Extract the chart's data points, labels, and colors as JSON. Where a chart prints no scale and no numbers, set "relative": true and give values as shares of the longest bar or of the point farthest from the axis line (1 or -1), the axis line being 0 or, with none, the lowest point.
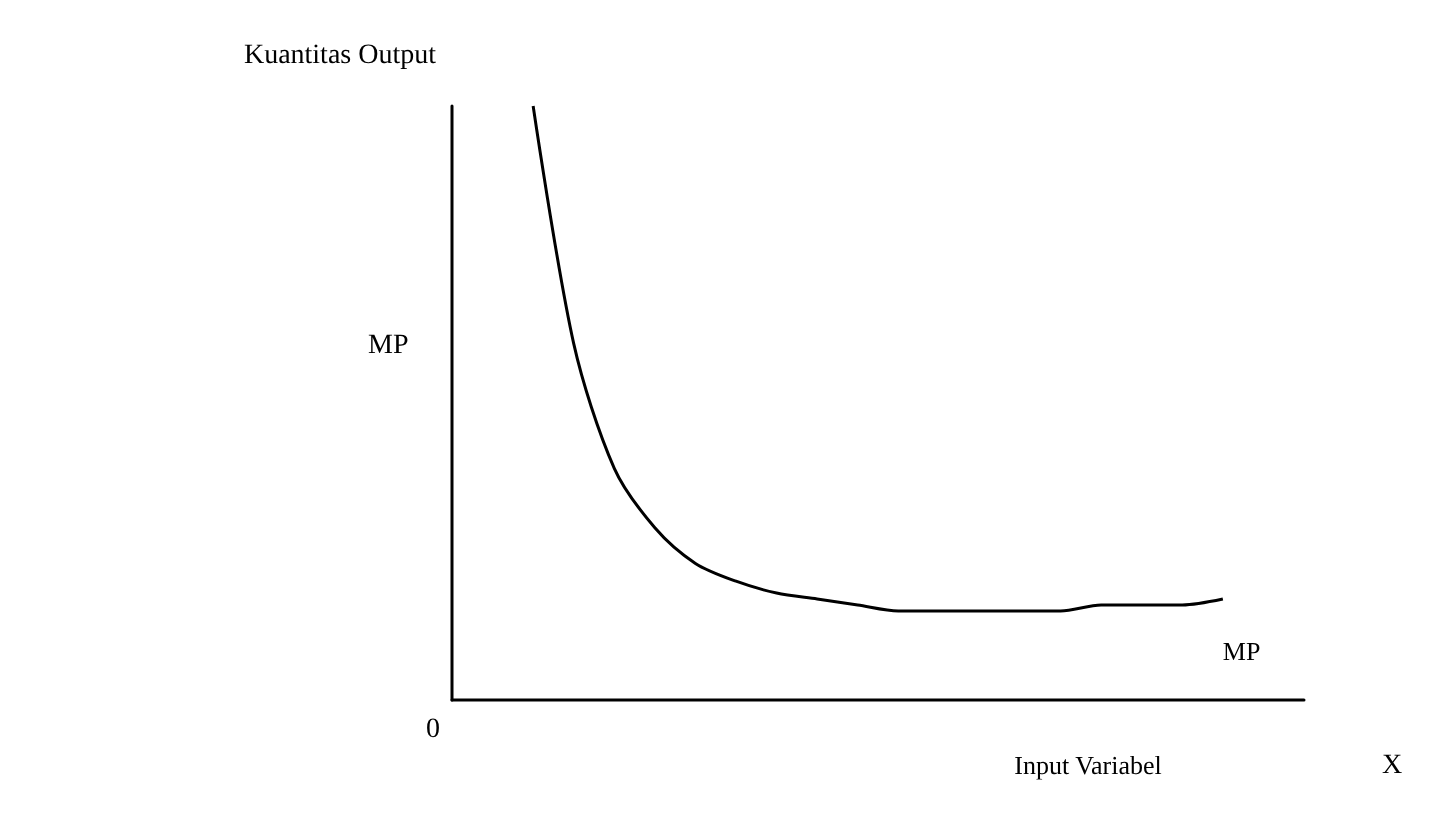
{
  "chart_data": {
    "type": "line",
    "relative": true,
    "ylabel": "Kuantitas Output",
    "xlabel": "Input Variabel",
    "annotations": [
      "MP",
      "0",
      "X"
    ],
    "categories": [
      null,
      null,
      null,
      null,
      null,
      null,
      null,
      null,
      null,
      null,
      null,
      null,
      null,
      null,
      null,
      null,
      null,
      null,
      null,
      null,
      null,
      null
    ],
    "series": [
      {
        "name": "MP",
        "color": "#000000",
        "values": [
          null,
          null,
          1.0,
          0.6,
          0.39,
          0.29,
          0.23,
          0.2,
          0.18,
          0.17,
          0.16,
          0.15,
          0.15,
          0.15,
          0.15,
          0.15,
          0.16,
          0.16,
          0.16,
          0.17,
          null,
          null
        ]
      }
    ],
    "grid": false,
    "legend": false,
    "marker": "none",
    "line_style": "solid"
  }
}
